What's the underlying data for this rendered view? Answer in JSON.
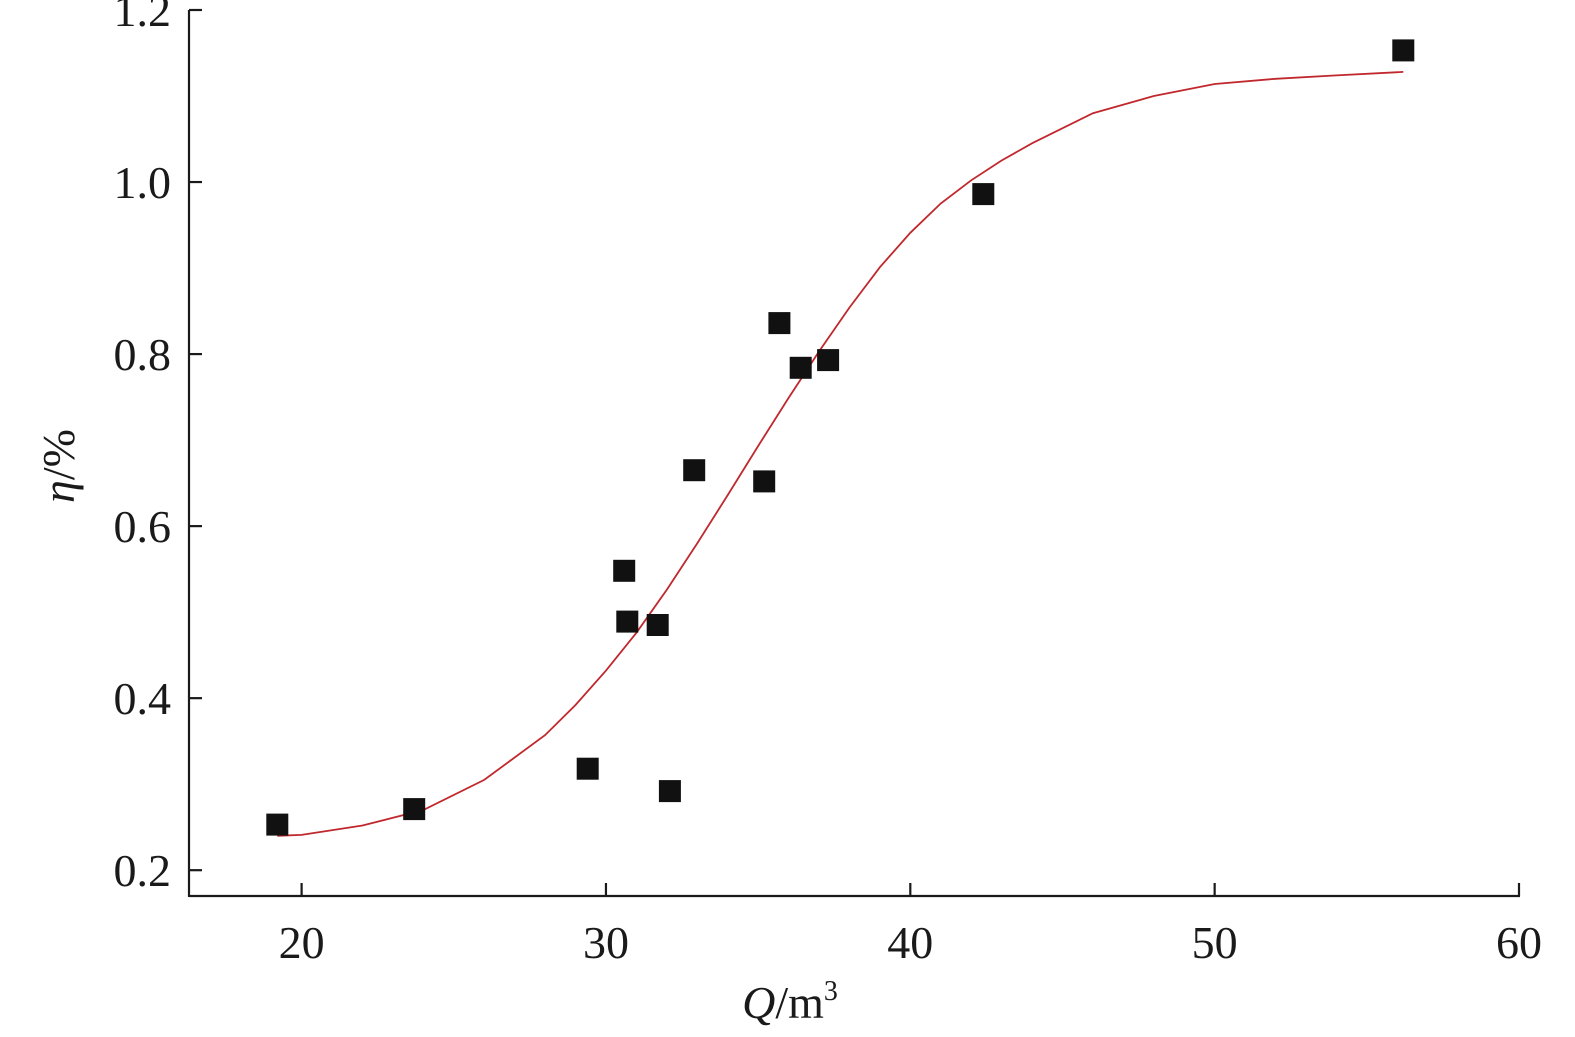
{
  "chart_data": {
    "type": "scatter",
    "xlabel": {
      "var": "Q",
      "unit": "/m",
      "sup": "3"
    },
    "ylabel": {
      "var": "η",
      "unit": "/%"
    },
    "xlim": [
      16.3,
      60
    ],
    "ylim": [
      0.17,
      1.2
    ],
    "xticks": [
      20,
      30,
      40,
      50,
      60
    ],
    "yticks": [
      0.2,
      0.4,
      0.6,
      0.8,
      1.0,
      1.2
    ],
    "xtick_labels": [
      "20",
      "30",
      "40",
      "50",
      "60"
    ],
    "ytick_labels": [
      "0.2",
      "0.4",
      "0.6",
      "0.8",
      "1.0",
      "1.2"
    ],
    "grid": false,
    "series": [
      {
        "kind": "points",
        "marker": "square",
        "color": "#111111",
        "x": [
          19.2,
          23.7,
          29.4,
          30.6,
          30.7,
          31.7,
          32.1,
          32.9,
          35.2,
          35.7,
          36.4,
          37.3,
          42.4,
          56.2
        ],
        "y": [
          0.253,
          0.271,
          0.318,
          0.548,
          0.489,
          0.485,
          0.292,
          0.665,
          0.652,
          0.836,
          0.784,
          0.793,
          0.986,
          1.153
        ]
      },
      {
        "kind": "fit-curve",
        "color": "#c0282d",
        "x": [
          19.2,
          20,
          22,
          24,
          26,
          28,
          29,
          30,
          31,
          32,
          33,
          34,
          35,
          36,
          37,
          38,
          39,
          40,
          41,
          42,
          43,
          44,
          46,
          48,
          50,
          52,
          54,
          56.2
        ],
        "y": [
          0.24,
          0.241,
          0.252,
          0.27,
          0.305,
          0.357,
          0.392,
          0.432,
          0.476,
          0.526,
          0.58,
          0.636,
          0.693,
          0.749,
          0.803,
          0.854,
          0.901,
          0.941,
          0.975,
          1.002,
          1.025,
          1.045,
          1.08,
          1.1,
          1.114,
          1.12,
          1.124,
          1.128
        ]
      }
    ]
  }
}
